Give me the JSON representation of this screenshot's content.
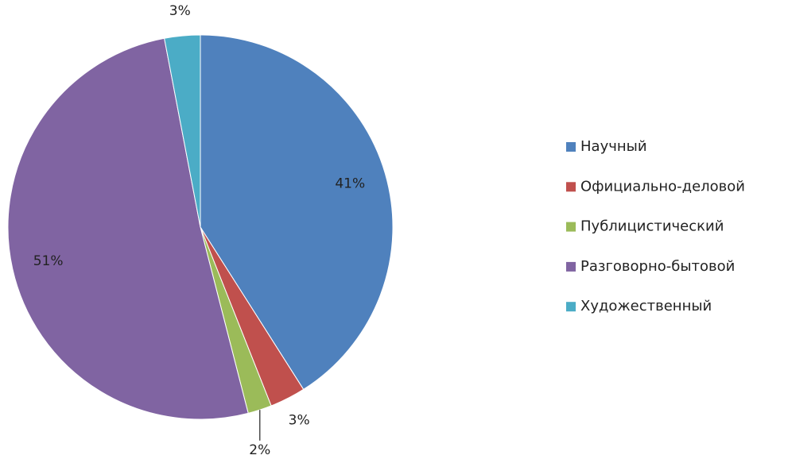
{
  "chart_data": {
    "type": "pie",
    "categories": [
      "Научный",
      "Официально-деловой",
      "Публицистический",
      "Разговорно-бытовой",
      "Художественный"
    ],
    "values": [
      41,
      3,
      2,
      51,
      3
    ],
    "value_labels": [
      "41%",
      "3%",
      "2%",
      "51%",
      "3%"
    ],
    "colors": [
      "#4f81bd",
      "#c0504d",
      "#9bbb59",
      "#8064a2",
      "#4bacc6"
    ],
    "legend": "right"
  }
}
